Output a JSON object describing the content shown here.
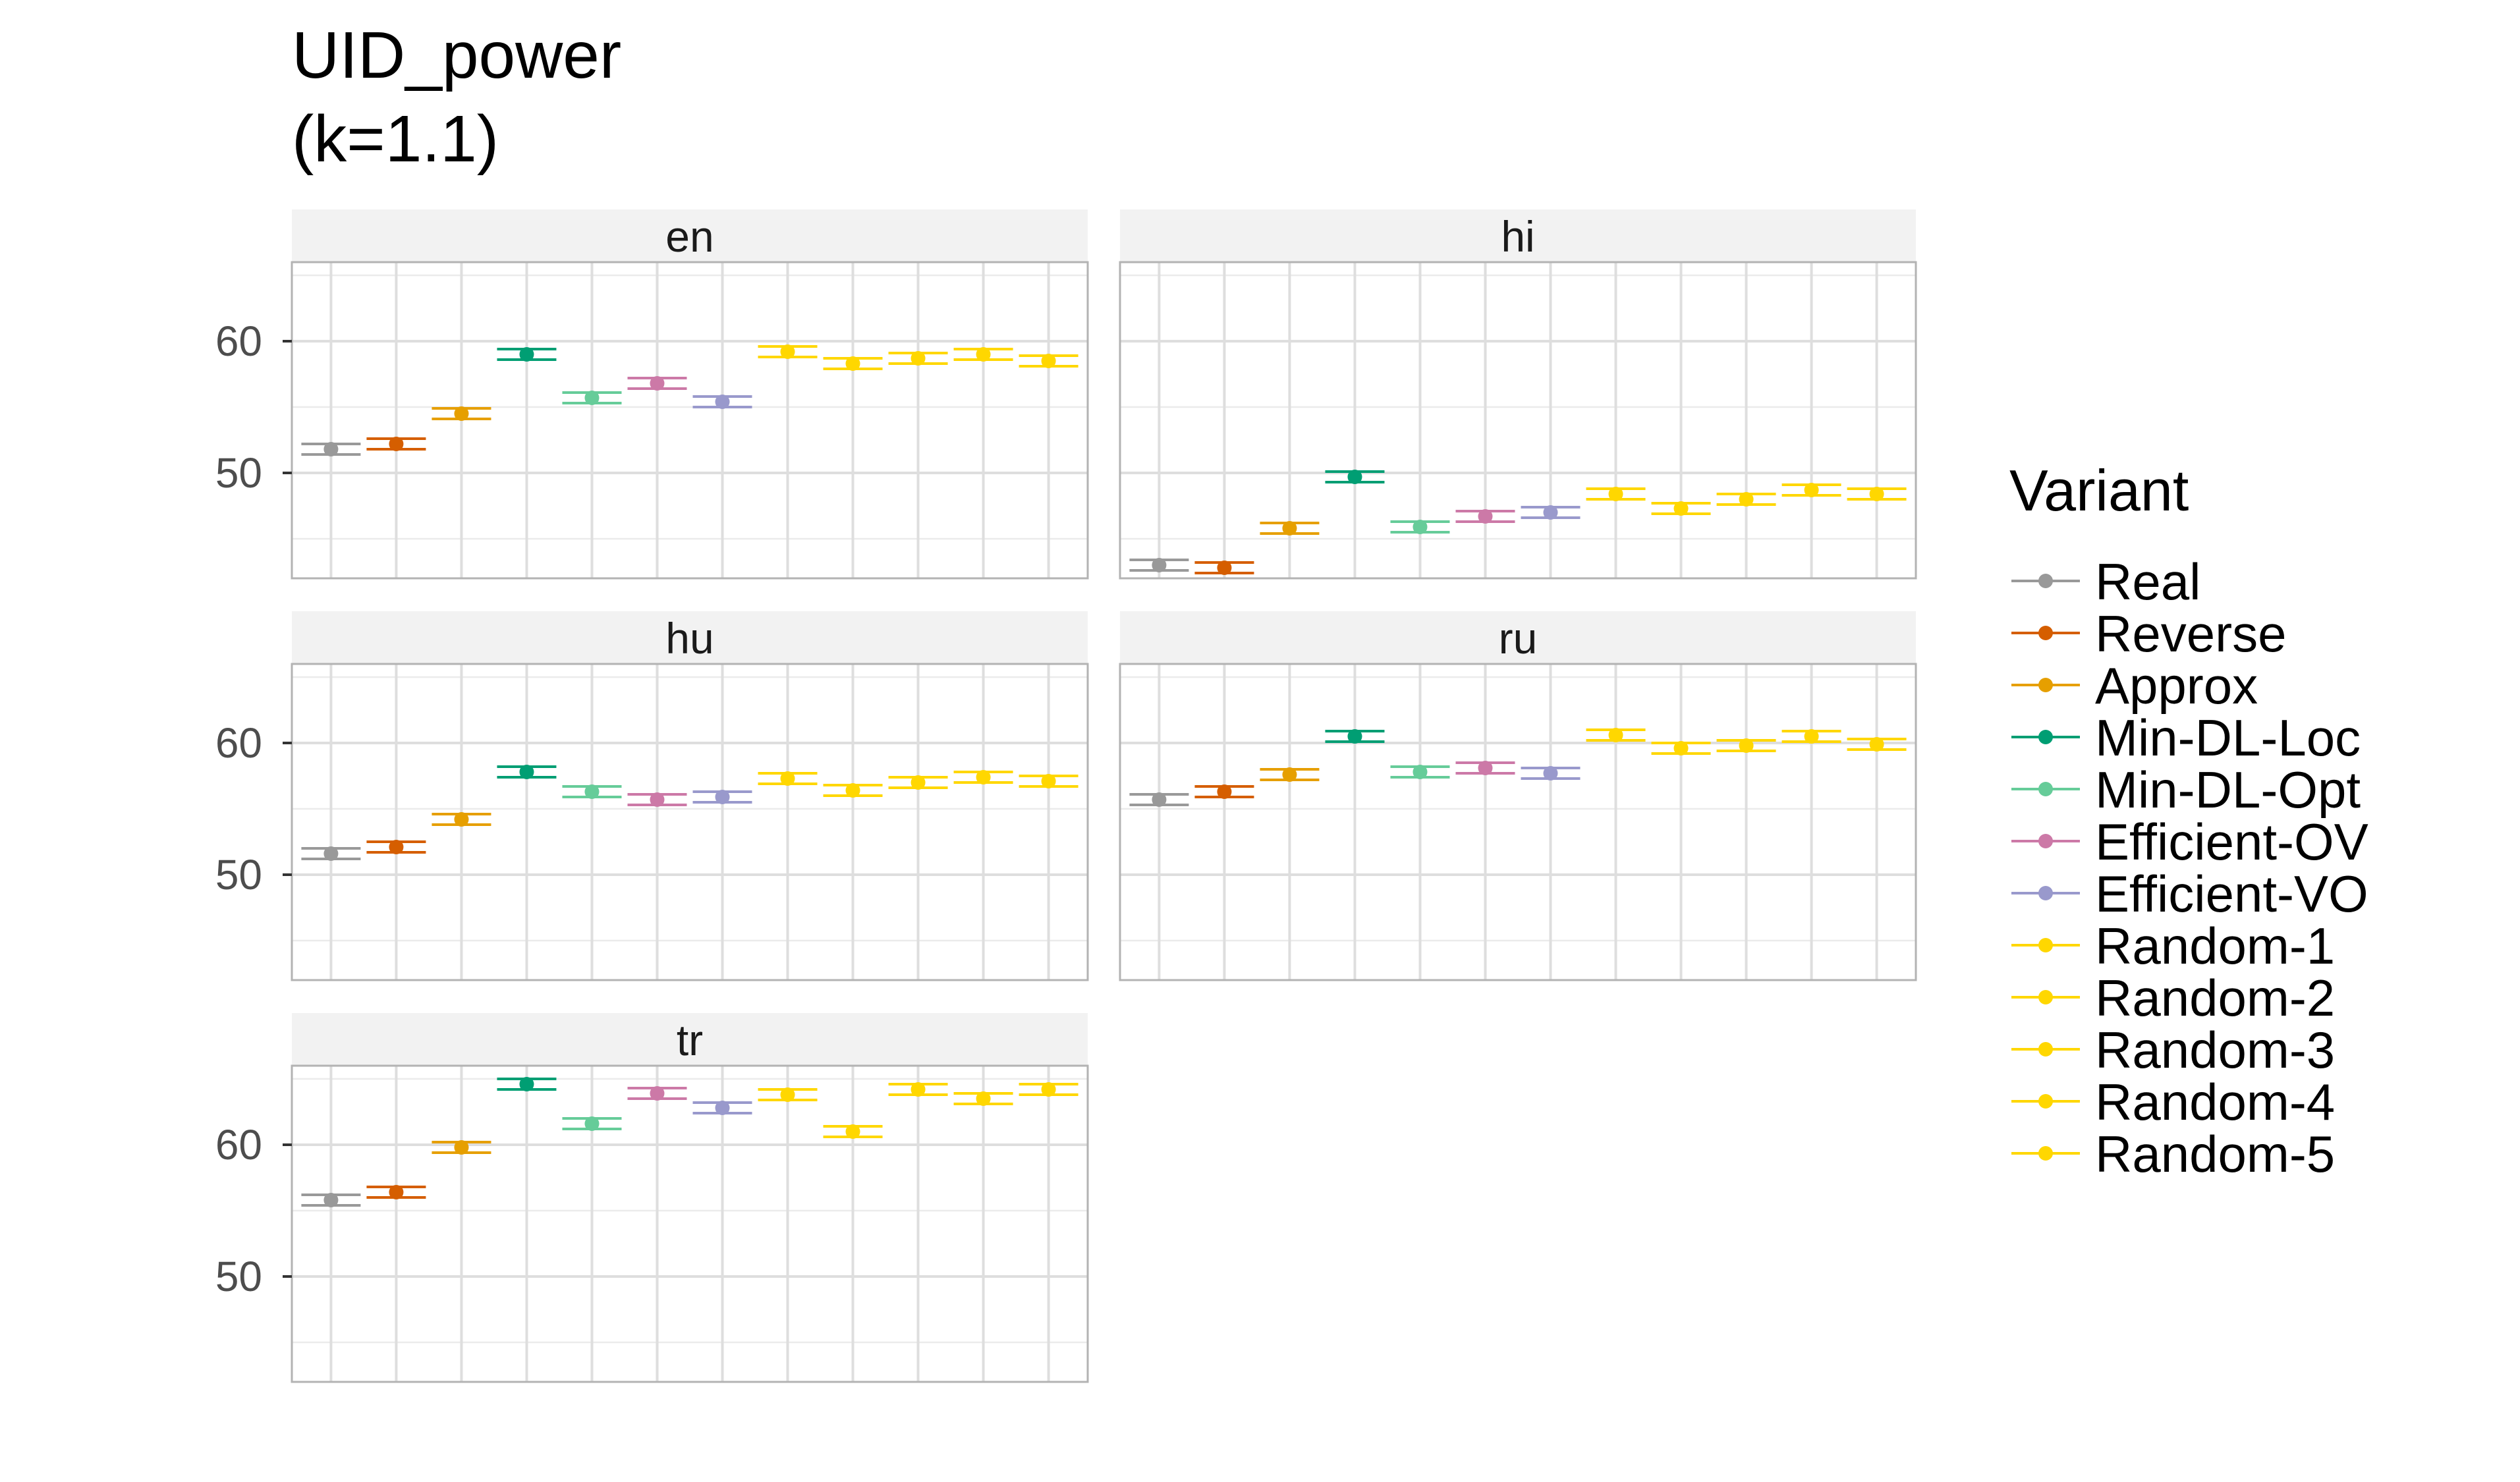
{
  "chart_data": {
    "type": "scatter",
    "title_line1": "UID_power",
    "title_line2": "(k=1.1)",
    "xlabel": "",
    "ylabel": "",
    "ylim": [
      42,
      66
    ],
    "y_ticks": [
      50,
      60
    ],
    "grid": true,
    "facet_layout": "2 columns, 3 rows",
    "legend": {
      "title": "Variant",
      "position": "right"
    },
    "variants": [
      {
        "name": "Real",
        "color": "#999999"
      },
      {
        "name": "Reverse",
        "color": "#D55E00"
      },
      {
        "name": "Approx",
        "color": "#E69F00"
      },
      {
        "name": "Min-DL-Loc",
        "color": "#009E73"
      },
      {
        "name": "Min-DL-Opt",
        "color": "#66CC99"
      },
      {
        "name": "Efficient-OV",
        "color": "#CC79A7"
      },
      {
        "name": "Efficient-VO",
        "color": "#9999CC"
      },
      {
        "name": "Random-1",
        "color": "#FFD700"
      },
      {
        "name": "Random-2",
        "color": "#FFD700"
      },
      {
        "name": "Random-3",
        "color": "#FFD700"
      },
      {
        "name": "Random-4",
        "color": "#FFD700"
      },
      {
        "name": "Random-5",
        "color": "#FFD700"
      }
    ],
    "facets": [
      {
        "label": "en",
        "values": [
          51.8,
          52.2,
          54.5,
          59.0,
          55.7,
          56.8,
          55.4,
          59.2,
          58.3,
          58.7,
          59.0,
          58.5
        ]
      },
      {
        "label": "hi",
        "values": [
          43.0,
          42.8,
          45.8,
          49.7,
          45.9,
          46.7,
          47.0,
          48.4,
          47.3,
          48.0,
          48.7,
          48.4
        ]
      },
      {
        "label": "hu",
        "values": [
          51.6,
          52.1,
          54.2,
          57.8,
          56.3,
          55.7,
          55.9,
          57.3,
          56.4,
          57.0,
          57.4,
          57.1
        ]
      },
      {
        "label": "ru",
        "values": [
          55.7,
          56.3,
          57.6,
          60.5,
          57.8,
          58.1,
          57.7,
          60.6,
          59.6,
          59.8,
          60.5,
          59.9
        ]
      },
      {
        "label": "tr",
        "values": [
          55.8,
          56.4,
          59.8,
          64.6,
          61.6,
          63.9,
          62.8,
          63.8,
          61.0,
          64.2,
          63.5,
          64.2
        ]
      }
    ]
  }
}
